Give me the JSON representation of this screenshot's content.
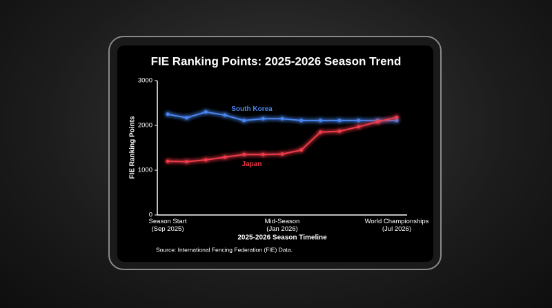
{
  "chart_data": {
    "type": "line",
    "title": "FIE Ranking Points: 2025-2026 Season Trend",
    "x_label": "2025-2026 Season Timeline",
    "y_label": "FIE Ranking Points",
    "source": "Source: International Fencing Federation (FIE) Data.",
    "categories": [
      "Season Start\n(Sep 2025)",
      null,
      null,
      null,
      null,
      null,
      "Mid-Season\n(Jan 2026)",
      null,
      null,
      null,
      null,
      null,
      "World Championships\n(Jul 2026)"
    ],
    "series": [
      {
        "name": "South Korea",
        "color": "#4a86f0",
        "values": [
          2250,
          2170,
          2300,
          2230,
          2110,
          2150,
          2150,
          2110,
          2110,
          2110,
          2110,
          2110,
          2110
        ]
      },
      {
        "name": "Japan",
        "color": "#f03a4a",
        "values": [
          1200,
          1190,
          1230,
          1290,
          1350,
          1350,
          1360,
          1450,
          1850,
          1870,
          1970,
          2080,
          2180
        ]
      }
    ],
    "ylim": [
      0,
      3000
    ],
    "yticks": [
      0,
      1000,
      2000,
      3000
    ],
    "grid": false
  }
}
